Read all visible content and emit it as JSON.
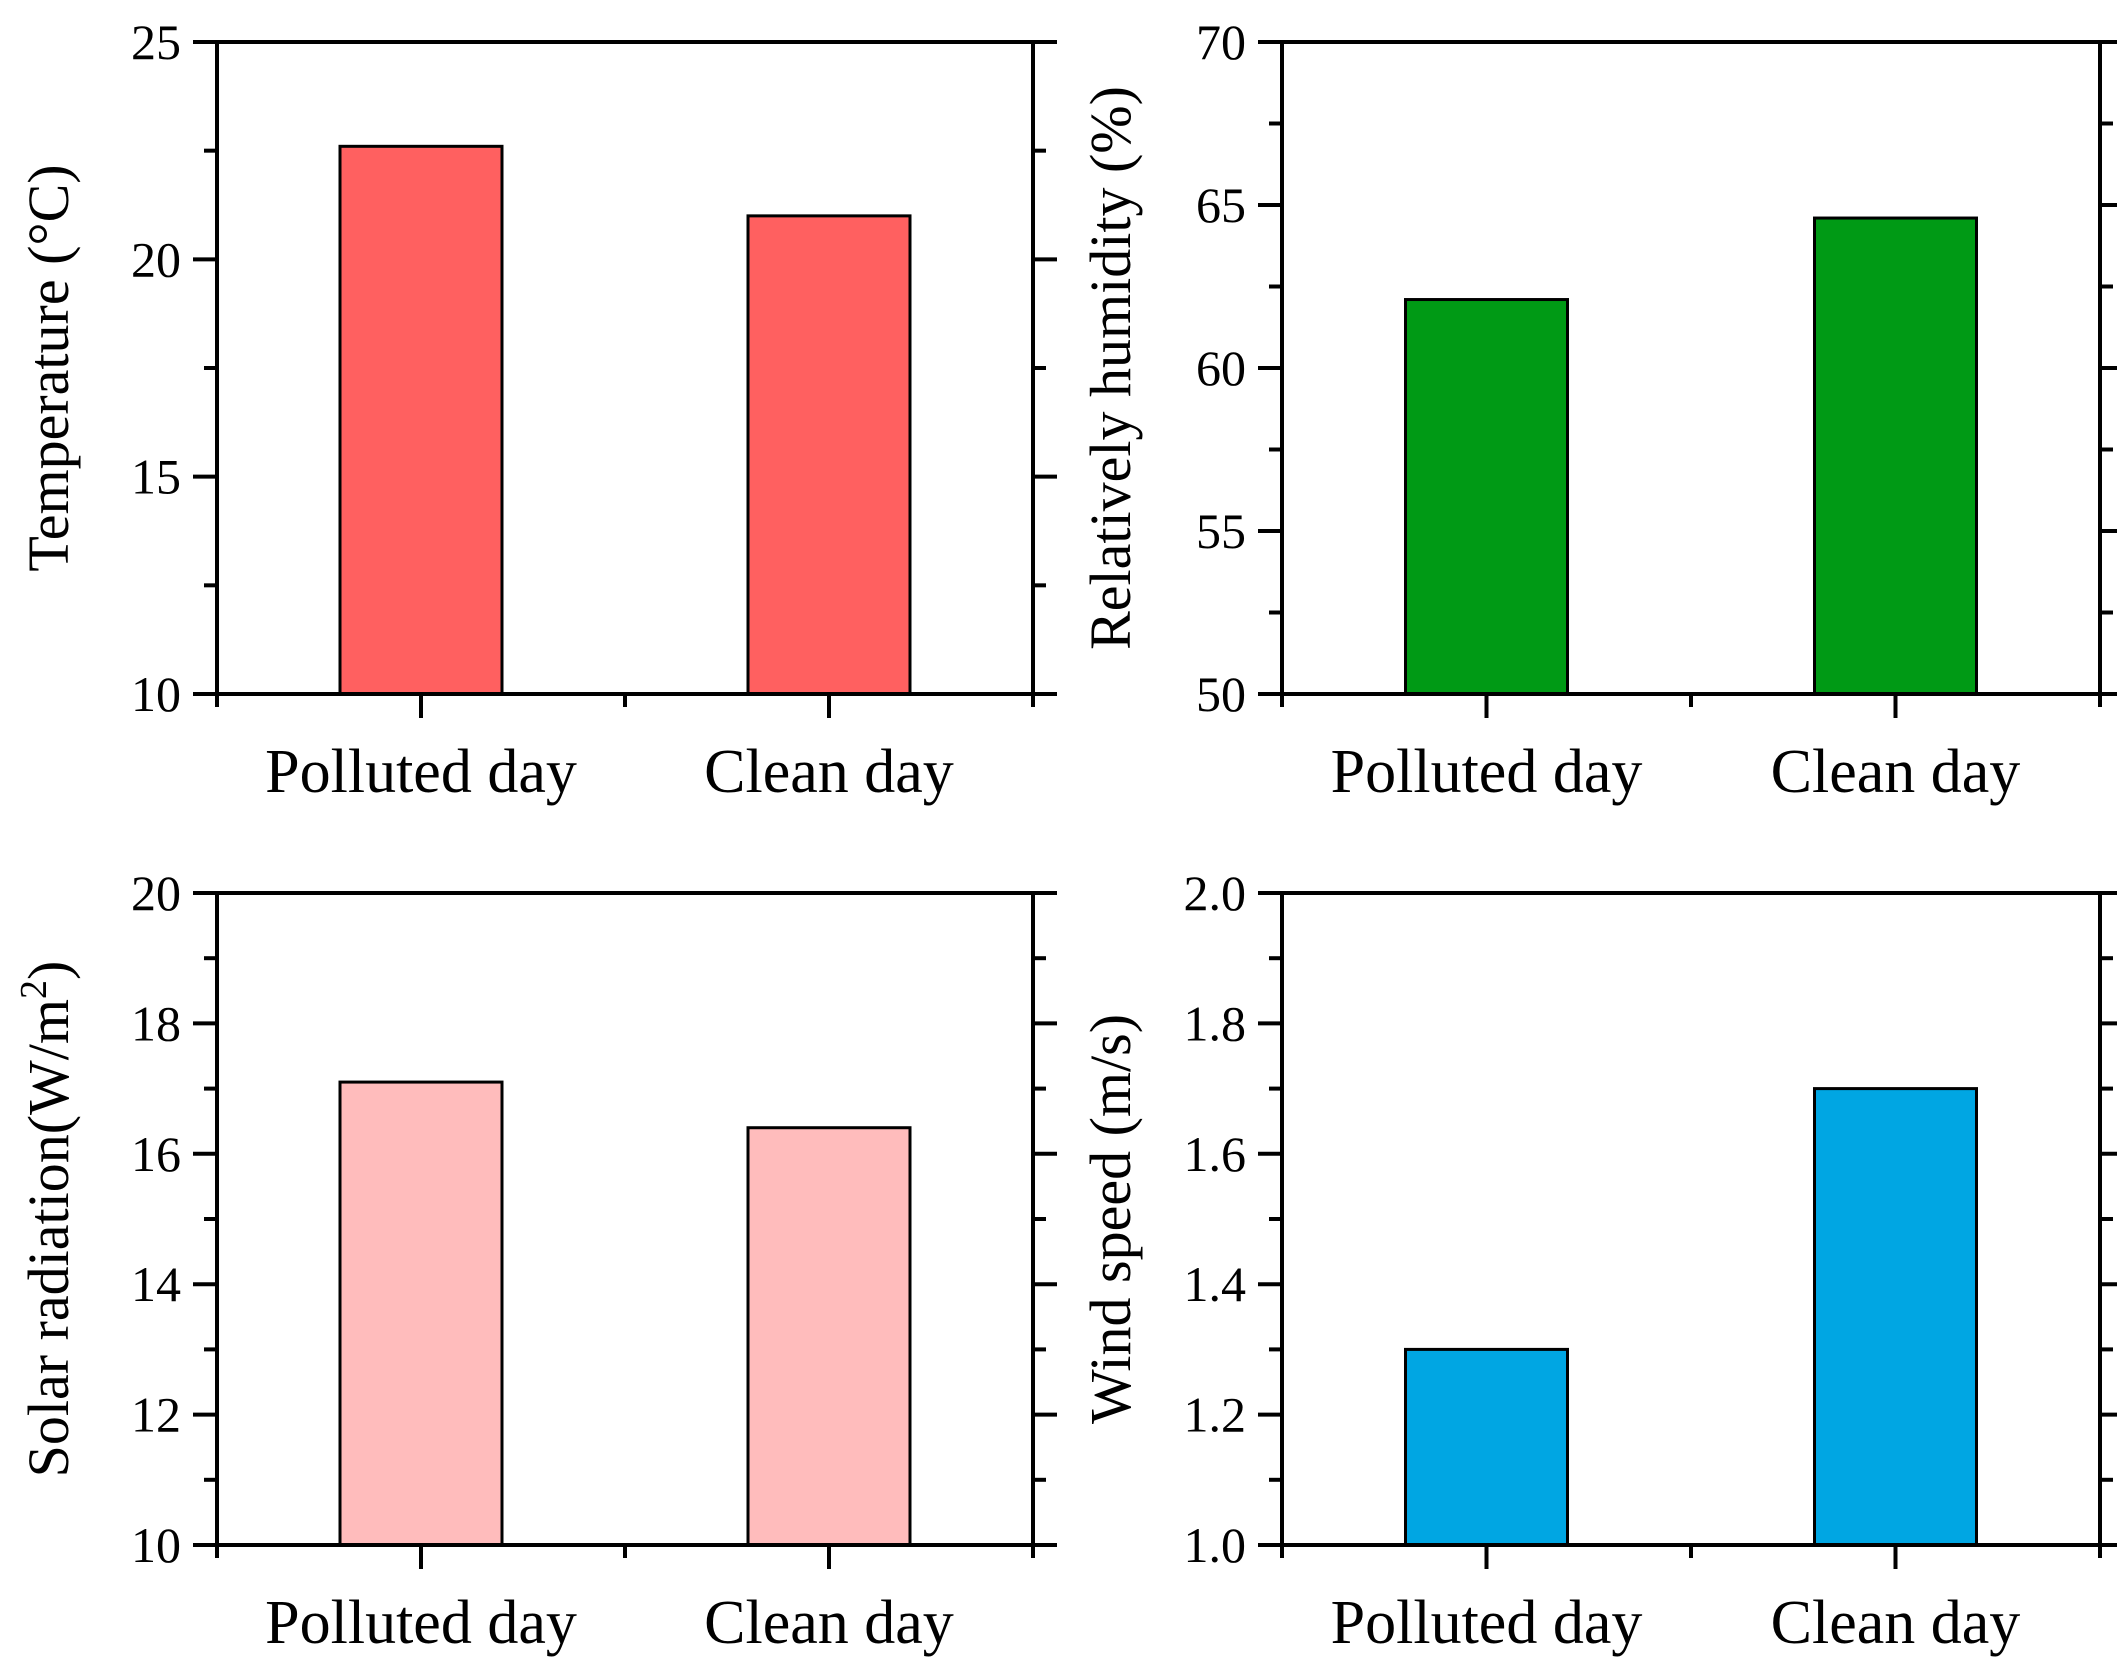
{
  "chart_data": [
    {
      "type": "bar",
      "categories": [
        "Polluted day",
        "Clean day"
      ],
      "values": [
        22.6,
        21.0
      ],
      "xlabel": "",
      "ylabel": "Temperature (°C)",
      "ylabel_sup": "",
      "ylabel_tail": "",
      "ylim": [
        10,
        25
      ],
      "yticks": [
        "10",
        "15",
        "20",
        "25"
      ],
      "color": "#FF6060",
      "grid": false
    },
    {
      "type": "bar",
      "categories": [
        "Polluted day",
        "Clean day"
      ],
      "values": [
        62.1,
        64.6
      ],
      "xlabel": "",
      "ylabel": "Relatively humidity (%)",
      "ylabel_sup": "",
      "ylabel_tail": "",
      "ylim": [
        50,
        70
      ],
      "yticks": [
        "50",
        "55",
        "60",
        "65",
        "70"
      ],
      "color": "#009A15",
      "grid": false
    },
    {
      "type": "bar",
      "categories": [
        "Polluted day",
        "Clean day"
      ],
      "values": [
        17.1,
        16.4
      ],
      "xlabel": "",
      "ylabel": "Solar radiation(W/m",
      "ylabel_sup": "2",
      "ylabel_tail": ")",
      "ylim": [
        10,
        20
      ],
      "yticks": [
        "10",
        "12",
        "14",
        "16",
        "18",
        "20"
      ],
      "color": "#FFBCBC",
      "grid": false
    },
    {
      "type": "bar",
      "categories": [
        "Polluted day",
        "Clean day"
      ],
      "values": [
        1.3,
        1.7
      ],
      "xlabel": "",
      "ylabel": "Wind speed (m/s)",
      "ylabel_sup": "",
      "ylabel_tail": "",
      "ylim": [
        1.0,
        2.0
      ],
      "yticks": [
        "1.0",
        "1.2",
        "1.4",
        "1.6",
        "1.8",
        "2.0"
      ],
      "color": "#00A6E3",
      "grid": false
    }
  ]
}
